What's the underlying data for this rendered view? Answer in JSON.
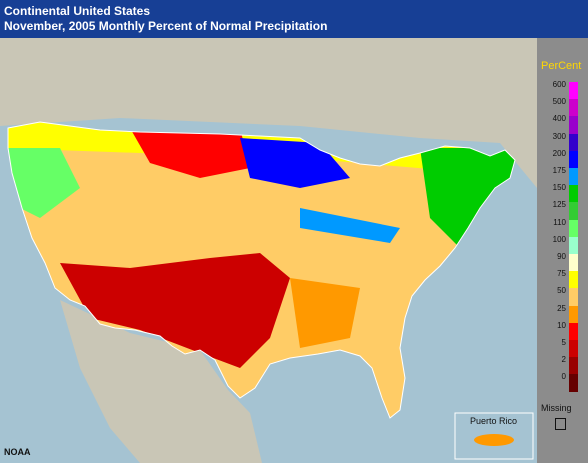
{
  "header": {
    "line1": "Continental United States",
    "line2": "November, 2005 Monthly Percent of Normal Precipitation"
  },
  "legend": {
    "title": "PerCent",
    "items": [
      {
        "label": "600",
        "color": "#ff00ff"
      },
      {
        "label": "500",
        "color": "#cc00cc"
      },
      {
        "label": "400",
        "color": "#9900cc"
      },
      {
        "label": "300",
        "color": "#3300cc"
      },
      {
        "label": "200",
        "color": "#0000ff"
      },
      {
        "label": "175",
        "color": "#0099ff"
      },
      {
        "label": "150",
        "color": "#00cc00"
      },
      {
        "label": "125",
        "color": "#33cc33"
      },
      {
        "label": "110",
        "color": "#66ff66"
      },
      {
        "label": "100",
        "color": "#99ffcc"
      },
      {
        "label": "90",
        "color": "#ffffcc"
      },
      {
        "label": "75",
        "color": "#ffff00"
      },
      {
        "label": "50",
        "color": "#ffcc66"
      },
      {
        "label": "25",
        "color": "#ff9900"
      },
      {
        "label": "10",
        "color": "#ff0000"
      },
      {
        "label": "5",
        "color": "#cc0000"
      },
      {
        "label": "2",
        "color": "#990000"
      },
      {
        "label": "0",
        "color": "#660000"
      }
    ],
    "missing_label": "Missing"
  },
  "inset": {
    "label": "Puerto Rico"
  },
  "credit": "NOAA",
  "colors": {
    "background": "#9fb4bf",
    "land": "#c9c6b6",
    "water": "#a5c3d2",
    "title_bar": "#173f95"
  }
}
